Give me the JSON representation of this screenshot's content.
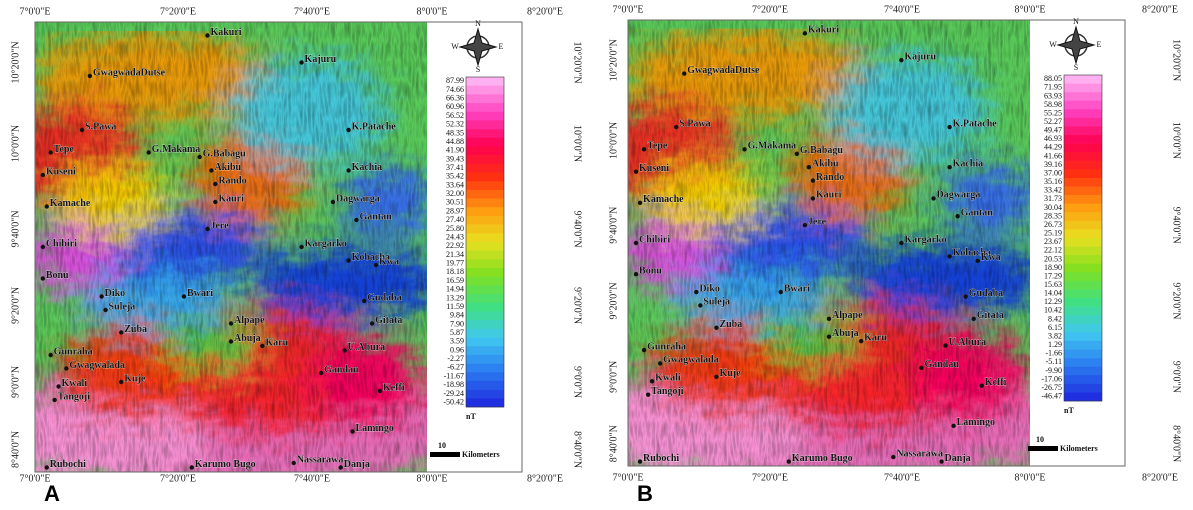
{
  "panels": [
    {
      "label": "A",
      "top_axis": [
        "7°0'0\"E",
        "7°20'0\"E",
        "7°40'0\"E",
        "8°0'0\"E",
        "8°20'0\"E"
      ],
      "bottom_axis": [
        "7°0'0\"E",
        "7°20'0\"E",
        "7°40'0\"E",
        "8°0'0\"E",
        "8°20'0\"E"
      ],
      "left_axis": [
        "10°20'0\"N",
        "10°0'0\"N",
        "9°40'0\"N",
        "9°20'0\"N",
        "9°0'0\"N",
        "8°40'0\"N"
      ],
      "right_axis": [
        "10°20'0\"N",
        "10°0'0\"N",
        "9°40'0\"N",
        "9°20'0\"N",
        "9°0'0\"N",
        "8°40'0\"N"
      ],
      "compass": [
        "N",
        "E",
        "S",
        "W"
      ],
      "legend": {
        "values": [
          "87.99",
          "74.66",
          "66.36",
          "60.96",
          "56.52",
          "52.32",
          "48.35",
          "44.88",
          "41.90",
          "39.43",
          "37.41",
          "35.42",
          "33.64",
          "32.00",
          "30.51",
          "28.97",
          "27.40",
          "25.80",
          "24.43",
          "22.92",
          "21.34",
          "19.77",
          "18.18",
          "16.59",
          "14.94",
          "13.29",
          "11.59",
          "9.84",
          "7.90",
          "5.87",
          "3.59",
          "0.96",
          "-2.27",
          "-6.27",
          "-11.67",
          "-18.98",
          "-29.24",
          "-50.42"
        ],
        "unit": "nT"
      },
      "scale": {
        "value": "10",
        "unit": "Kilometers"
      },
      "towns": [
        "Kakuri",
        "Kajuru",
        "GwagwadaDutse",
        "S.Pawa",
        "K.Patache",
        "Tepe",
        "G.Makama",
        "G.Babagu",
        "Akibu",
        "Kuseni",
        "Rando",
        "Kachia",
        "Kamache",
        "Kauri",
        "Dagwarga",
        "Gantan",
        "Jere",
        "Chibiri",
        "Kargarko",
        "Kobacha",
        "Kwa",
        "Bonu",
        "Diko",
        "Bwari",
        "Suleja",
        "Gudaba",
        "Zuba",
        "Alpape",
        "Abuja",
        "Karu",
        "Gitata",
        "Gunraha",
        "U.Abura",
        "Gwagwalada",
        "Gandau",
        "Kwali",
        "Kuje",
        "Keffi",
        "Tangoji",
        "Lamingo",
        "Rubochi",
        "Karumo Bugo",
        "Nassarawa",
        "Danja"
      ]
    },
    {
      "label": "B",
      "top_axis": [
        "7°0'0\"E",
        "7°20'0\"E",
        "7°40'0\"E",
        "8°0'0\"E",
        "8°20'0\"E"
      ],
      "bottom_axis": [
        "7°0'0\"E",
        "7°20'0\"E",
        "7°40'0\"E",
        "8°0'0\"E",
        "8°20'0\"E"
      ],
      "left_axis": [
        "10°20'0\"N",
        "10°0'0\"N",
        "9°40'0\"N",
        "9°20'0\"N",
        "9°0'0\"N",
        "8°40'0\"N"
      ],
      "right_axis": [
        "10°20'0\"N",
        "10°0'0\"N",
        "9°40'0\"N",
        "9°20'0\"N",
        "9°0'0\"N",
        "8°40'0\"N"
      ],
      "compass": [
        "N",
        "E",
        "S",
        "W"
      ],
      "legend": {
        "values": [
          "88.05",
          "71.95",
          "63.93",
          "58.98",
          "55.25",
          "52.27",
          "49.47",
          "46.93",
          "44.29",
          "41.66",
          "39.16",
          "37.00",
          "35.16",
          "33.42",
          "31.73",
          "30.04",
          "28.35",
          "26.73",
          "25.19",
          "23.67",
          "22.12",
          "20.53",
          "18.90",
          "17.29",
          "15.63",
          "14.04",
          "12.29",
          "10.42",
          "8.42",
          "6.15",
          "3.82",
          "1.29",
          "-1.66",
          "-5.11",
          "-9.90",
          "-17.06",
          "-26.75",
          "-46.47"
        ],
        "unit": "nT"
      },
      "scale": {
        "value": "10",
        "unit": "Kilometers"
      },
      "towns": [
        "Kakuri",
        "Kajuru",
        "GwagwadaDutse",
        "S.Pawa",
        "K.Patache",
        "Tepe",
        "G.Makama",
        "G.Babagu",
        "Akibu",
        "Kuseni",
        "Rando",
        "Kachia",
        "Kamache",
        "Kauri",
        "Dagwarga",
        "Gantan",
        "Jere",
        "Chibiri",
        "Kargarko",
        "Kobacha",
        "Kwa",
        "Bonu",
        "Diko",
        "Bwari",
        "Suleja",
        "Gudaba",
        "Zuba",
        "Alpape",
        "Abuja",
        "Karu",
        "Gitata",
        "Gunraha",
        "U.Abura",
        "Gwagwalada",
        "Gandau",
        "Kwali",
        "Kuje",
        "Keffi",
        "Tangoji",
        "Lamingo",
        "Rubochi",
        "Karumo Bugo",
        "Nassarawa",
        "Danja"
      ]
    }
  ]
}
